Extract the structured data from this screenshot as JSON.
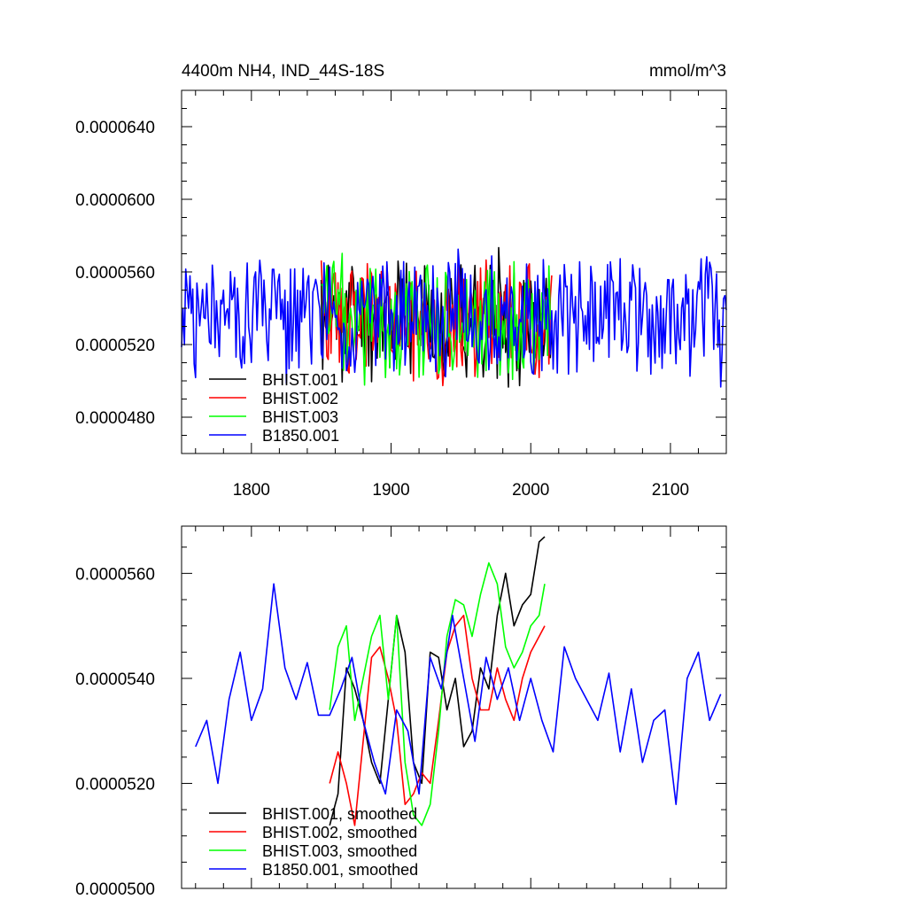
{
  "chart_data": [
    {
      "type": "line",
      "title": "4400m NH4, IND_44S-18S",
      "units": "mmol/m^3",
      "xlim": [
        1750,
        2140
      ],
      "ylim": [
        4.6e-05,
        6.6e-05
      ],
      "x_ticks": [
        1800,
        1900,
        2000,
        2100
      ],
      "x_tick_labels": [
        "1800",
        "1900",
        "2000",
        "2100"
      ],
      "y_ticks": [
        4.8e-05,
        5.2e-05,
        5.6e-05,
        6e-05,
        6.4e-05
      ],
      "y_tick_labels": [
        "0.0000480",
        "0.0000520",
        "0.0000560",
        "0.0000600",
        "0.0000640"
      ],
      "legend_position": "bottom-left",
      "series": [
        {
          "name": "BHIST.001",
          "color": "#000000",
          "x_start": 1850,
          "x_end": 2015,
          "mean": 5.35e-05,
          "amp": 3e-06,
          "seed": 11
        },
        {
          "name": "BHIST.002",
          "color": "#ff0000",
          "x_start": 1850,
          "x_end": 2015,
          "mean": 5.34e-05,
          "amp": 3e-06,
          "seed": 23
        },
        {
          "name": "BHIST.003",
          "color": "#00ff00",
          "x_start": 1850,
          "x_end": 2015,
          "mean": 5.35e-05,
          "amp": 3.1e-06,
          "seed": 37
        },
        {
          "name": "B1850.001",
          "color": "#0000ff",
          "x_start": 1750,
          "x_end": 2140,
          "mean": 5.35e-05,
          "amp": 3e-06,
          "seed": 51
        }
      ]
    },
    {
      "type": "line",
      "title": "",
      "xlim": [
        1750,
        2140
      ],
      "ylim": [
        5e-05,
        5.69e-05
      ],
      "x_ticks": [
        1800,
        1900,
        2000,
        2100
      ],
      "y_ticks": [
        5e-05,
        5.2e-05,
        5.4e-05,
        5.6e-05
      ],
      "y_tick_labels": [
        "0.0000500",
        "0.0000520",
        "0.0000540",
        "0.0000560"
      ],
      "legend_position": "bottom-left",
      "series": [
        {
          "name": "BHIST.001, smoothed",
          "color": "#000000",
          "x": [
            1856,
            1862,
            1868,
            1874,
            1880,
            1886,
            1892,
            1898,
            1904,
            1910,
            1916,
            1922,
            1928,
            1934,
            1940,
            1946,
            1952,
            1958,
            1964,
            1970,
            1976,
            1982,
            1988,
            1994,
            2000,
            2006,
            2010
          ],
          "y": [
            5.12e-05,
            5.18e-05,
            5.42e-05,
            5.38e-05,
            5.32e-05,
            5.24e-05,
            5.2e-05,
            5.36e-05,
            5.52e-05,
            5.45e-05,
            5.24e-05,
            5.2e-05,
            5.45e-05,
            5.44e-05,
            5.34e-05,
            5.4e-05,
            5.27e-05,
            5.3e-05,
            5.42e-05,
            5.38e-05,
            5.52e-05,
            5.6e-05,
            5.5e-05,
            5.54e-05,
            5.56e-05,
            5.66e-05,
            5.67e-05
          ]
        },
        {
          "name": "BHIST.002, smoothed",
          "color": "#ff0000",
          "x": [
            1856,
            1862,
            1868,
            1874,
            1880,
            1886,
            1892,
            1898,
            1904,
            1910,
            1916,
            1922,
            1928,
            1934,
            1940,
            1946,
            1952,
            1958,
            1964,
            1970,
            1976,
            1982,
            1988,
            1994,
            2000,
            2006,
            2010
          ],
          "y": [
            5.2e-05,
            5.26e-05,
            5.2e-05,
            5.12e-05,
            5.28e-05,
            5.44e-05,
            5.46e-05,
            5.4e-05,
            5.32e-05,
            5.16e-05,
            5.18e-05,
            5.22e-05,
            5.2e-05,
            5.32e-05,
            5.45e-05,
            5.5e-05,
            5.52e-05,
            5.4e-05,
            5.34e-05,
            5.34e-05,
            5.42e-05,
            5.36e-05,
            5.32e-05,
            5.4e-05,
            5.45e-05,
            5.48e-05,
            5.5e-05
          ]
        },
        {
          "name": "BHIST.003, smoothed",
          "color": "#00ff00",
          "x": [
            1856,
            1862,
            1868,
            1874,
            1880,
            1886,
            1892,
            1898,
            1904,
            1910,
            1916,
            1922,
            1928,
            1934,
            1940,
            1946,
            1952,
            1958,
            1964,
            1970,
            1976,
            1982,
            1988,
            1994,
            2000,
            2006,
            2010
          ],
          "y": [
            5.34e-05,
            5.46e-05,
            5.5e-05,
            5.32e-05,
            5.4e-05,
            5.48e-05,
            5.52e-05,
            5.36e-05,
            5.52e-05,
            5.24e-05,
            5.14e-05,
            5.12e-05,
            5.16e-05,
            5.3e-05,
            5.48e-05,
            5.55e-05,
            5.54e-05,
            5.48e-05,
            5.56e-05,
            5.62e-05,
            5.58e-05,
            5.46e-05,
            5.42e-05,
            5.45e-05,
            5.5e-05,
            5.52e-05,
            5.58e-05
          ]
        },
        {
          "name": "B1850.001, smoothed",
          "color": "#0000ff",
          "x": [
            1760,
            1768,
            1776,
            1784,
            1792,
            1800,
            1808,
            1816,
            1824,
            1832,
            1840,
            1848,
            1856,
            1864,
            1872,
            1880,
            1888,
            1896,
            1904,
            1912,
            1920,
            1928,
            1936,
            1944,
            1952,
            1960,
            1968,
            1976,
            1984,
            1992,
            2000,
            2008,
            2016,
            2024,
            2032,
            2040,
            2048,
            2056,
            2064,
            2072,
            2080,
            2088,
            2096,
            2104,
            2112,
            2120,
            2128,
            2136
          ],
          "y": [
            5.27e-05,
            5.32e-05,
            5.2e-05,
            5.36e-05,
            5.45e-05,
            5.32e-05,
            5.38e-05,
            5.58e-05,
            5.42e-05,
            5.36e-05,
            5.43e-05,
            5.33e-05,
            5.33e-05,
            5.38e-05,
            5.44e-05,
            5.32e-05,
            5.24e-05,
            5.18e-05,
            5.34e-05,
            5.3e-05,
            5.18e-05,
            5.44e-05,
            5.38e-05,
            5.52e-05,
            5.4e-05,
            5.28e-05,
            5.44e-05,
            5.36e-05,
            5.42e-05,
            5.32e-05,
            5.4e-05,
            5.32e-05,
            5.26e-05,
            5.46e-05,
            5.4e-05,
            5.36e-05,
            5.32e-05,
            5.41e-05,
            5.26e-05,
            5.38e-05,
            5.24e-05,
            5.32e-05,
            5.34e-05,
            5.16e-05,
            5.4e-05,
            5.45e-05,
            5.32e-05,
            5.37e-05
          ]
        }
      ]
    }
  ]
}
